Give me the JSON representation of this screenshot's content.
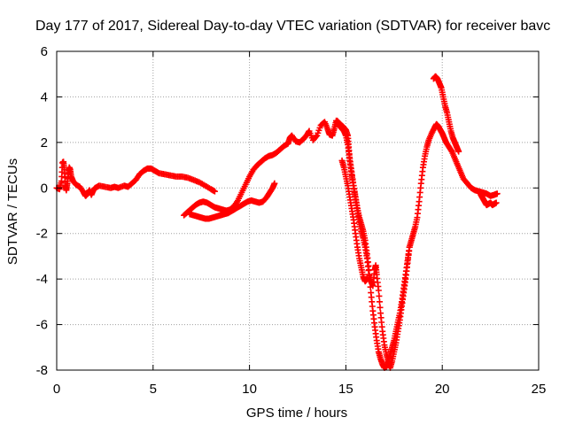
{
  "chart_data": {
    "type": "scatter",
    "title": "Day 177 of 2017, Sidereal Day-to-day VTEC variation (SDTVAR) for receiver bavc",
    "xlabel": "GPS time / hours",
    "ylabel": "SDTVAR / TECUs",
    "xlim": [
      0,
      25
    ],
    "ylim": [
      -8,
      6
    ],
    "xticks": [
      0,
      5,
      10,
      15,
      20,
      25
    ],
    "yticks": [
      -8,
      -6,
      -4,
      -2,
      0,
      2,
      4,
      6
    ],
    "grid": true,
    "marker": "+",
    "series_color": "#ff0000",
    "series": [
      {
        "points": [
          [
            0.0,
            0.0
          ],
          [
            0.15,
            -0.05
          ],
          [
            0.25,
            0.3
          ],
          [
            0.3,
            1.1
          ],
          [
            0.35,
            1.15
          ],
          [
            0.4,
            0.8
          ],
          [
            0.45,
            0.1
          ],
          [
            0.5,
            -0.1
          ],
          [
            0.55,
            0.2
          ],
          [
            0.6,
            0.6
          ],
          [
            0.65,
            0.9
          ],
          [
            0.7,
            0.8
          ],
          [
            0.75,
            0.5
          ],
          [
            0.85,
            0.3
          ],
          [
            1.0,
            0.15
          ],
          [
            1.2,
            0.05
          ],
          [
            1.4,
            -0.2
          ],
          [
            1.5,
            -0.35
          ],
          [
            1.6,
            -0.25
          ],
          [
            1.7,
            -0.1
          ],
          [
            1.8,
            -0.3
          ],
          [
            1.9,
            -0.1
          ],
          [
            2.0,
            0.0
          ],
          [
            2.2,
            0.1
          ],
          [
            2.5,
            0.05
          ],
          [
            2.8,
            0.0
          ],
          [
            3.0,
            0.05
          ],
          [
            3.2,
            0.0
          ],
          [
            3.5,
            0.1
          ],
          [
            3.7,
            0.05
          ],
          [
            3.9,
            0.2
          ],
          [
            4.1,
            0.35
          ],
          [
            4.3,
            0.6
          ],
          [
            4.5,
            0.75
          ],
          [
            4.7,
            0.85
          ],
          [
            4.9,
            0.85
          ],
          [
            5.1,
            0.75
          ],
          [
            5.3,
            0.65
          ],
          [
            5.6,
            0.6
          ],
          [
            5.9,
            0.55
          ],
          [
            6.2,
            0.5
          ],
          [
            6.5,
            0.5
          ],
          [
            6.8,
            0.45
          ],
          [
            7.1,
            0.35
          ],
          [
            7.4,
            0.25
          ],
          [
            7.7,
            0.1
          ],
          [
            8.0,
            -0.05
          ],
          [
            8.2,
            -0.15
          ]
        ]
      },
      {
        "points": [
          [
            6.6,
            -1.2
          ],
          [
            6.8,
            -1.05
          ],
          [
            7.0,
            -0.9
          ],
          [
            7.2,
            -0.75
          ],
          [
            7.4,
            -0.65
          ],
          [
            7.6,
            -0.6
          ],
          [
            7.8,
            -0.65
          ],
          [
            8.0,
            -0.75
          ],
          [
            8.2,
            -0.85
          ],
          [
            8.4,
            -0.9
          ],
          [
            8.6,
            -0.95
          ],
          [
            8.8,
            -1.0
          ],
          [
            9.0,
            -0.95
          ],
          [
            9.2,
            -0.8
          ],
          [
            9.4,
            -0.55
          ],
          [
            9.6,
            -0.2
          ],
          [
            9.8,
            0.15
          ],
          [
            10.0,
            0.5
          ],
          [
            10.2,
            0.8
          ],
          [
            10.4,
            1.0
          ],
          [
            10.6,
            1.15
          ],
          [
            10.8,
            1.3
          ],
          [
            11.0,
            1.4
          ],
          [
            11.2,
            1.45
          ],
          [
            11.4,
            1.55
          ],
          [
            11.6,
            1.7
          ],
          [
            11.8,
            1.85
          ],
          [
            12.0,
            1.95
          ],
          [
            12.1,
            2.2
          ],
          [
            12.2,
            2.3
          ],
          [
            12.4,
            2.05
          ],
          [
            12.6,
            2.0
          ],
          [
            12.8,
            2.15
          ],
          [
            13.0,
            2.35
          ],
          [
            13.1,
            2.5
          ],
          [
            13.3,
            2.1
          ],
          [
            13.5,
            2.3
          ],
          [
            13.7,
            2.75
          ],
          [
            13.9,
            2.9
          ],
          [
            14.05,
            2.6
          ],
          [
            14.15,
            2.35
          ],
          [
            14.3,
            2.3
          ],
          [
            14.4,
            2.6
          ],
          [
            14.5,
            2.95
          ],
          [
            14.6,
            2.8
          ],
          [
            14.7,
            2.7
          ],
          [
            14.8,
            2.6
          ],
          [
            14.9,
            2.5
          ],
          [
            15.0,
            2.3
          ],
          [
            15.1,
            1.9
          ],
          [
            15.2,
            1.3
          ],
          [
            15.3,
            0.7
          ],
          [
            15.4,
            0.1
          ],
          [
            15.5,
            -0.4
          ],
          [
            15.6,
            -0.9
          ],
          [
            15.7,
            -1.3
          ],
          [
            15.8,
            -1.6
          ],
          [
            15.9,
            -1.9
          ],
          [
            16.0,
            -2.3
          ],
          [
            16.1,
            -2.9
          ],
          [
            16.2,
            -3.6
          ],
          [
            16.3,
            -4.6
          ],
          [
            16.4,
            -5.4
          ],
          [
            16.5,
            -6.1
          ],
          [
            16.6,
            -6.7
          ],
          [
            16.7,
            -7.2
          ],
          [
            16.8,
            -7.5
          ],
          [
            16.9,
            -7.75
          ],
          [
            17.0,
            -7.9
          ],
          [
            17.1,
            -7.85
          ],
          [
            17.2,
            -7.6
          ],
          [
            17.3,
            -7.3
          ],
          [
            17.4,
            -7.0
          ],
          [
            17.5,
            -6.7
          ],
          [
            17.6,
            -6.3
          ],
          [
            17.7,
            -5.9
          ],
          [
            17.8,
            -5.5
          ],
          [
            17.9,
            -5.0
          ],
          [
            18.0,
            -4.4
          ],
          [
            18.1,
            -3.8
          ],
          [
            18.2,
            -3.2
          ],
          [
            18.3,
            -2.6
          ],
          [
            18.4,
            -2.3
          ],
          [
            18.5,
            -2.0
          ],
          [
            18.6,
            -1.7
          ],
          [
            18.7,
            -1.3
          ],
          [
            18.8,
            -0.6
          ],
          [
            18.9,
            0.2
          ],
          [
            19.0,
            0.9
          ],
          [
            19.1,
            1.4
          ],
          [
            19.2,
            1.8
          ],
          [
            19.3,
            2.1
          ],
          [
            19.45,
            2.4
          ],
          [
            19.6,
            2.65
          ],
          [
            19.7,
            2.8
          ],
          [
            19.8,
            2.7
          ],
          [
            19.9,
            2.55
          ],
          [
            20.0,
            2.4
          ],
          [
            20.1,
            2.2
          ],
          [
            20.2,
            2.0
          ],
          [
            20.35,
            1.8
          ],
          [
            20.5,
            1.6
          ],
          [
            20.65,
            1.3
          ],
          [
            20.8,
            1.0
          ],
          [
            20.95,
            0.7
          ],
          [
            21.1,
            0.4
          ],
          [
            21.3,
            0.2
          ],
          [
            21.5,
            0.0
          ],
          [
            21.7,
            -0.1
          ],
          [
            21.9,
            -0.15
          ],
          [
            22.1,
            -0.2
          ],
          [
            22.3,
            -0.25
          ],
          [
            22.5,
            -0.35
          ],
          [
            22.7,
            -0.3
          ],
          [
            22.85,
            -0.25
          ]
        ]
      },
      {
        "points": [
          [
            6.9,
            -1.15
          ],
          [
            7.1,
            -1.2
          ],
          [
            7.3,
            -1.25
          ],
          [
            7.5,
            -1.3
          ],
          [
            7.7,
            -1.35
          ],
          [
            7.9,
            -1.35
          ],
          [
            8.1,
            -1.3
          ],
          [
            8.3,
            -1.25
          ],
          [
            8.5,
            -1.2
          ],
          [
            8.7,
            -1.15
          ],
          [
            8.9,
            -1.1
          ],
          [
            9.1,
            -1.0
          ],
          [
            9.3,
            -0.9
          ],
          [
            9.5,
            -0.8
          ],
          [
            9.7,
            -0.7
          ],
          [
            9.9,
            -0.6
          ],
          [
            10.1,
            -0.55
          ],
          [
            10.3,
            -0.6
          ],
          [
            10.5,
            -0.65
          ],
          [
            10.7,
            -0.6
          ],
          [
            10.9,
            -0.4
          ],
          [
            11.05,
            -0.2
          ],
          [
            11.2,
            0.0
          ],
          [
            11.3,
            0.2
          ]
        ]
      },
      {
        "points": [
          [
            14.55,
            2.95
          ],
          [
            14.7,
            2.8
          ],
          [
            14.85,
            2.7
          ],
          [
            15.0,
            2.55
          ],
          [
            15.1,
            2.3
          ],
          [
            15.15,
            1.8
          ],
          [
            15.2,
            1.2
          ],
          [
            15.3,
            0.6
          ],
          [
            15.4,
            0.1
          ],
          [
            15.5,
            -0.5
          ],
          [
            15.6,
            -1.0
          ],
          [
            15.7,
            -1.5
          ],
          [
            15.8,
            -1.9
          ],
          [
            15.9,
            -2.2
          ],
          [
            16.0,
            -2.6
          ],
          [
            16.1,
            -3.1
          ],
          [
            16.2,
            -3.8
          ],
          [
            16.3,
            -4.1
          ],
          [
            16.4,
            -4.3
          ],
          [
            16.5,
            -3.6
          ],
          [
            16.55,
            -3.4
          ],
          [
            16.6,
            -3.8
          ],
          [
            16.7,
            -4.5
          ],
          [
            16.8,
            -5.5
          ],
          [
            16.9,
            -6.3
          ],
          [
            17.0,
            -6.9
          ],
          [
            17.1,
            -7.3
          ],
          [
            17.2,
            -7.6
          ],
          [
            17.3,
            -7.9
          ],
          [
            17.4,
            -7.6
          ],
          [
            17.5,
            -7.2
          ],
          [
            17.6,
            -6.8
          ],
          [
            17.7,
            -6.3
          ],
          [
            17.8,
            -5.8
          ],
          [
            17.9,
            -5.2
          ],
          [
            18.0,
            -4.6
          ],
          [
            18.1,
            -4.0
          ],
          [
            18.2,
            -3.3
          ],
          [
            18.3,
            -2.6
          ]
        ]
      },
      {
        "points": [
          [
            14.8,
            1.2
          ],
          [
            14.9,
            0.9
          ],
          [
            15.0,
            0.5
          ],
          [
            15.1,
            0.1
          ],
          [
            15.2,
            -0.4
          ],
          [
            15.3,
            -0.9
          ],
          [
            15.4,
            -1.4
          ],
          [
            15.5,
            -2.0
          ],
          [
            15.6,
            -2.6
          ],
          [
            15.7,
            -3.1
          ],
          [
            15.8,
            -3.5
          ],
          [
            15.9,
            -3.9
          ],
          [
            16.0,
            -4.1
          ],
          [
            16.1,
            -4.0
          ]
        ]
      },
      {
        "points": [
          [
            19.55,
            4.8
          ],
          [
            19.65,
            4.9
          ],
          [
            19.75,
            4.8
          ],
          [
            19.85,
            4.6
          ],
          [
            19.95,
            4.4
          ],
          [
            20.05,
            4.0
          ],
          [
            20.15,
            3.6
          ],
          [
            20.25,
            3.3
          ],
          [
            20.35,
            2.9
          ],
          [
            20.45,
            2.5
          ],
          [
            20.55,
            2.2
          ],
          [
            20.65,
            2.0
          ],
          [
            20.75,
            1.8
          ],
          [
            20.85,
            1.6
          ]
        ]
      },
      {
        "points": [
          [
            22.0,
            -0.3
          ],
          [
            22.1,
            -0.45
          ],
          [
            22.2,
            -0.6
          ],
          [
            22.3,
            -0.75
          ],
          [
            22.4,
            -0.7
          ],
          [
            22.5,
            -0.65
          ],
          [
            22.6,
            -0.75
          ],
          [
            22.7,
            -0.7
          ],
          [
            22.8,
            -0.65
          ]
        ]
      }
    ]
  }
}
